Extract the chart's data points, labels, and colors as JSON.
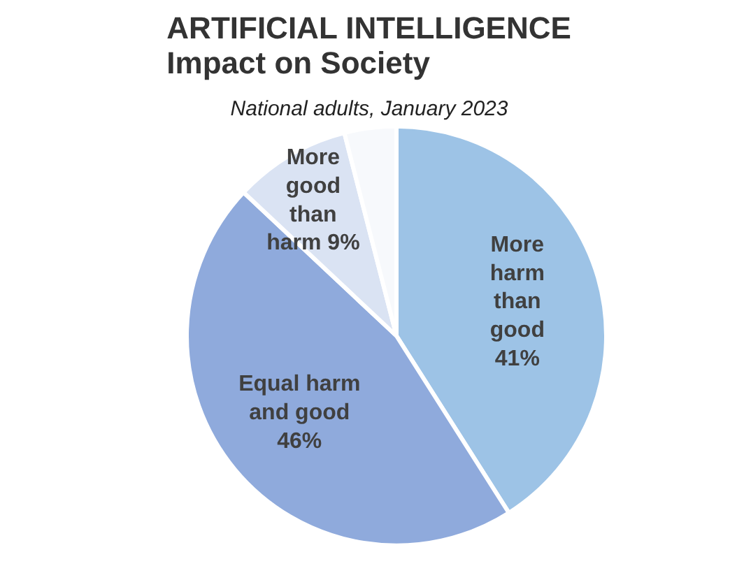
{
  "chart_data": {
    "type": "pie",
    "title": "ARTIFICIAL INTELLIGENCE\nImpact on Society",
    "subtitle": "National adults, January 2023",
    "categories": [
      "More harm than good",
      "Equal harm and good",
      "More good than harm",
      null
    ],
    "values": [
      41,
      46,
      9,
      4
    ],
    "colors": [
      "#9dc3e6",
      "#8faadc",
      "#dae3f3",
      "#f7f9fc"
    ],
    "value_labels": [
      "41%",
      "46%",
      "9%",
      null
    ],
    "legend": false
  }
}
